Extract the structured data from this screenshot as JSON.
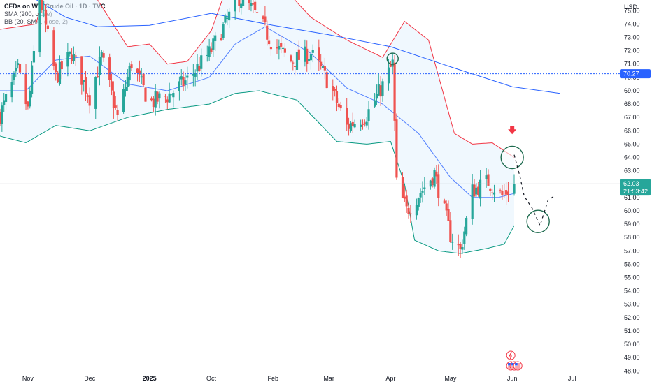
{
  "legend": {
    "title": "CFDs on WTI Crude Oil · 1D · TVC",
    "indicator1": "SMA (200, close)",
    "indicator2": "BB (20, SMA, close, 2)"
  },
  "price_axis": {
    "currency": "USD",
    "ticks": [
      "75.00",
      "74.00",
      "73.00",
      "72.00",
      "71.00",
      "70.00",
      "69.00",
      "68.00",
      "67.00",
      "66.00",
      "65.00",
      "64.00",
      "63.00",
      "62.00",
      "61.00",
      "60.00",
      "59.00",
      "58.00",
      "57.00",
      "56.00",
      "55.00",
      "54.00",
      "53.00",
      "52.00",
      "51.00",
      "50.00",
      "49.00",
      "48.00"
    ],
    "marker_level_label": "70.27",
    "last_price_label": "62.03",
    "countdown_label": "21:53:42"
  },
  "time_axis": {
    "labels": [
      "Oct",
      "Nov",
      "Dec",
      "2025",
      "Feb",
      "Mar",
      "Apr",
      "May",
      "Jun",
      "Jul"
    ],
    "bold_label": "2025"
  },
  "colors": {
    "up": "#26a69a",
    "down": "#ef5350",
    "bb_upper": "#f23645",
    "bb_lower": "#089981",
    "bb_basis": "#2962ff",
    "sma200": "#2962ff",
    "bb_fill": "#e3f2fd",
    "marker_line": "#2962ff",
    "circle": "#1e6b4f",
    "arrow": "#f23645"
  },
  "icons": [
    "flash-icon",
    "us-flag-icon",
    "calendar-events-icon"
  ],
  "chart_data": {
    "type": "candlestick",
    "title": "CFDs on WTI Crude Oil · 1D · TVC",
    "xlabel": "",
    "ylabel": "USD",
    "ylim": [
      47.7,
      75.8
    ],
    "x_range": [
      "2024-09-17",
      "2025-07-25"
    ],
    "x_tick_labels": {
      "Oct": "2024-10-01",
      "Nov": "2024-11-01",
      "Dec": "2024-12-01",
      "2025": "2025-01-01",
      "Feb": "2025-02-01",
      "Mar": "2025-03-01",
      "Apr": "2025-04-01",
      "May": "2025-05-01",
      "Jun": "2025-06-01",
      "Jul": "2025-07-01"
    },
    "last_price": 62.03,
    "horizontal_line": 70.27,
    "grid": false,
    "anchors": [
      {
        "date": "2024-09-17",
        "close": 67.2
      },
      {
        "date": "2024-09-26",
        "close": 70.5
      },
      {
        "date": "2024-10-01",
        "close": 67.5
      },
      {
        "date": "2024-10-07",
        "close": 76.0
      },
      {
        "date": "2024-10-15",
        "close": 70.0
      },
      {
        "date": "2024-10-23",
        "close": 71.8
      },
      {
        "date": "2024-11-01",
        "close": 68.5
      },
      {
        "date": "2024-11-07",
        "close": 71.5
      },
      {
        "date": "2024-11-15",
        "close": 67.0
      },
      {
        "date": "2024-11-22",
        "close": 71.1
      },
      {
        "date": "2024-12-01",
        "close": 68.1
      },
      {
        "date": "2024-12-10",
        "close": 68.6
      },
      {
        "date": "2024-12-20",
        "close": 69.8
      },
      {
        "date": "2024-12-31",
        "close": 71.8
      },
      {
        "date": "2025-01-08",
        "close": 74.0
      },
      {
        "date": "2025-01-15",
        "close": 76.0
      },
      {
        "date": "2025-01-22",
        "close": 75.0
      },
      {
        "date": "2025-02-01",
        "close": 72.5
      },
      {
        "date": "2025-02-10",
        "close": 71.2
      },
      {
        "date": "2025-02-20",
        "close": 71.8
      },
      {
        "date": "2025-03-01",
        "close": 69.6
      },
      {
        "date": "2025-03-10",
        "close": 66.3
      },
      {
        "date": "2025-03-20",
        "close": 67.2
      },
      {
        "date": "2025-03-28",
        "close": 69.4
      },
      {
        "date": "2025-04-02",
        "close": 71.0
      },
      {
        "date": "2025-04-04",
        "close": 62.0
      },
      {
        "date": "2025-04-09",
        "close": 60.0
      },
      {
        "date": "2025-04-15",
        "close": 61.2
      },
      {
        "date": "2025-04-23",
        "close": 62.8
      },
      {
        "date": "2025-05-01",
        "close": 58.2
      },
      {
        "date": "2025-05-06",
        "close": 57.0
      },
      {
        "date": "2025-05-12",
        "close": 61.5
      },
      {
        "date": "2025-05-20",
        "close": 62.2
      },
      {
        "date": "2025-05-27",
        "close": 61.1
      },
      {
        "date": "2025-06-02",
        "close": 62.03
      }
    ],
    "bb_upper": [
      {
        "date": "2024-09-17",
        "value": 73.6
      },
      {
        "date": "2024-10-05",
        "value": 74.0
      },
      {
        "date": "2024-10-13",
        "value": 78.2
      },
      {
        "date": "2024-10-30",
        "value": 77.2
      },
      {
        "date": "2024-11-20",
        "value": 72.3
      },
      {
        "date": "2024-12-01",
        "value": 72.5
      },
      {
        "date": "2024-12-10",
        "value": 71.0
      },
      {
        "date": "2024-12-20",
        "value": 71.2
      },
      {
        "date": "2025-01-01",
        "value": 73.5
      },
      {
        "date": "2025-01-13",
        "value": 78.5
      },
      {
        "date": "2025-01-28",
        "value": 78.2
      },
      {
        "date": "2025-02-20",
        "value": 74.5
      },
      {
        "date": "2025-03-10",
        "value": 72.8
      },
      {
        "date": "2025-03-28",
        "value": 71.5
      },
      {
        "date": "2025-04-08",
        "value": 74.2
      },
      {
        "date": "2025-04-20",
        "value": 72.8
      },
      {
        "date": "2025-05-03",
        "value": 65.8
      },
      {
        "date": "2025-05-12",
        "value": 65.0
      },
      {
        "date": "2025-05-22",
        "value": 65.1
      },
      {
        "date": "2025-06-02",
        "value": 64.0
      }
    ],
    "bb_lower": [
      {
        "date": "2024-09-17",
        "value": 65.6
      },
      {
        "date": "2024-09-30",
        "value": 65.1
      },
      {
        "date": "2024-10-15",
        "value": 66.4
      },
      {
        "date": "2024-11-01",
        "value": 66.0
      },
      {
        "date": "2024-11-20",
        "value": 67.0
      },
      {
        "date": "2024-12-10",
        "value": 67.6
      },
      {
        "date": "2024-12-31",
        "value": 68.0
      },
      {
        "date": "2025-01-13",
        "value": 68.8
      },
      {
        "date": "2025-01-25",
        "value": 69.0
      },
      {
        "date": "2025-02-13",
        "value": 68.3
      },
      {
        "date": "2025-03-05",
        "value": 65.2
      },
      {
        "date": "2025-03-20",
        "value": 65.0
      },
      {
        "date": "2025-04-01",
        "value": 65.2
      },
      {
        "date": "2025-04-08",
        "value": 62.0
      },
      {
        "date": "2025-04-13",
        "value": 57.8
      },
      {
        "date": "2025-04-25",
        "value": 57.0
      },
      {
        "date": "2025-05-06",
        "value": 56.8
      },
      {
        "date": "2025-05-20",
        "value": 57.2
      },
      {
        "date": "2025-05-28",
        "value": 57.5
      },
      {
        "date": "2025-06-02",
        "value": 58.9
      }
    ],
    "bb_basis": [
      {
        "date": "2024-09-17",
        "value": 69.0
      },
      {
        "date": "2024-09-30",
        "value": 69.0
      },
      {
        "date": "2024-10-15",
        "value": 71.3
      },
      {
        "date": "2024-11-01",
        "value": 71.6
      },
      {
        "date": "2024-11-20",
        "value": 69.5
      },
      {
        "date": "2024-12-10",
        "value": 69.0
      },
      {
        "date": "2024-12-31",
        "value": 70.0
      },
      {
        "date": "2025-01-13",
        "value": 72.5
      },
      {
        "date": "2025-01-28",
        "value": 73.8
      },
      {
        "date": "2025-02-20",
        "value": 71.8
      },
      {
        "date": "2025-03-10",
        "value": 69.2
      },
      {
        "date": "2025-03-28",
        "value": 68.0
      },
      {
        "date": "2025-04-15",
        "value": 65.8
      },
      {
        "date": "2025-05-01",
        "value": 62.5
      },
      {
        "date": "2025-05-12",
        "value": 61.0
      },
      {
        "date": "2025-05-25",
        "value": 61.0
      },
      {
        "date": "2025-06-02",
        "value": 61.3
      }
    ],
    "sma200": [
      {
        "date": "2024-09-17",
        "value": 78.0
      },
      {
        "date": "2024-10-01",
        "value": 76.2
      },
      {
        "date": "2024-10-20",
        "value": 74.5
      },
      {
        "date": "2024-11-05",
        "value": 73.8
      },
      {
        "date": "2024-12-01",
        "value": 73.9
      },
      {
        "date": "2025-01-01",
        "value": 74.8
      },
      {
        "date": "2025-02-01",
        "value": 73.9
      },
      {
        "date": "2025-03-01",
        "value": 73.2
      },
      {
        "date": "2025-04-01",
        "value": 72.3
      },
      {
        "date": "2025-05-01",
        "value": 70.8
      },
      {
        "date": "2025-06-01",
        "value": 69.3
      },
      {
        "date": "2025-06-25",
        "value": 68.8
      }
    ],
    "annotations": [
      {
        "type": "circle",
        "date": "2025-04-02",
        "value": 71.4
      },
      {
        "type": "circle",
        "date": "2025-06-01",
        "value": 64.0
      },
      {
        "type": "circle",
        "date": "2025-06-14",
        "value": 59.2
      },
      {
        "type": "arrow-down",
        "date": "2025-06-01",
        "value": 66.0
      },
      {
        "type": "projection-path",
        "points": [
          {
            "date": "2025-06-02",
            "value": 64.2
          },
          {
            "date": "2025-06-05",
            "value": 62.5
          },
          {
            "date": "2025-06-07",
            "value": 61.1
          },
          {
            "date": "2025-06-11",
            "value": 60.2
          },
          {
            "date": "2025-06-15",
            "value": 58.9
          },
          {
            "date": "2025-06-19",
            "value": 60.8
          },
          {
            "date": "2025-06-22",
            "value": 61.1
          }
        ]
      }
    ]
  }
}
